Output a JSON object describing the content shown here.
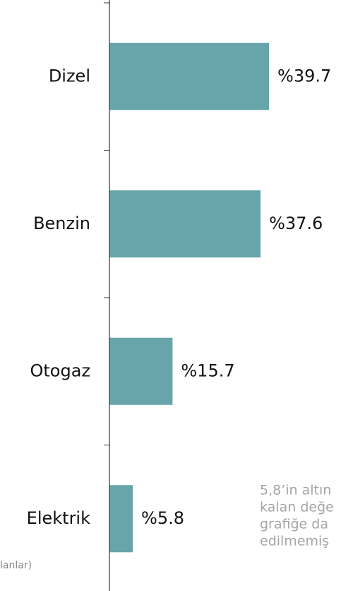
{
  "chart_data": {
    "type": "bar",
    "orientation": "horizontal",
    "categories": [
      "Dizel",
      "Benzin",
      "Otogaz",
      "Elektrik"
    ],
    "values": [
      39.7,
      37.6,
      15.7,
      5.8
    ],
    "value_labels": [
      "%39.7",
      "%37.6",
      "%15.7",
      "%5.8"
    ],
    "color": "#67a5aa",
    "xlim": [
      0,
      60
    ],
    "annotation": [
      "5,8’in altın",
      "kalan değe",
      "grafiğe da",
      "edilmemiş"
    ],
    "source": "lanlar)"
  }
}
